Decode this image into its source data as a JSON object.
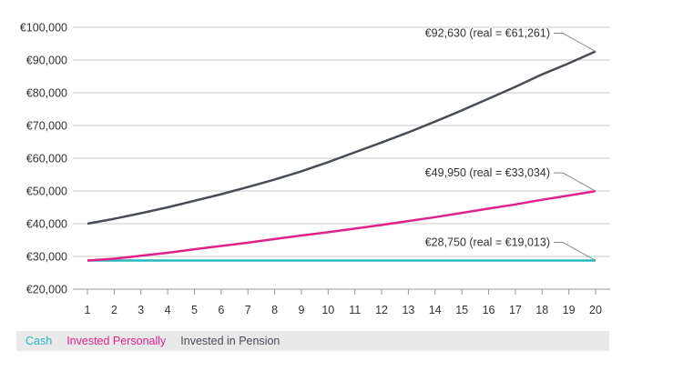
{
  "colors": {
    "cash": "#27b9bd",
    "invested_personally": "#e0218a",
    "invested_pension": "#474c55",
    "grid": "#c9c9c9",
    "axis": "#999999",
    "legend_bg": "#e9e9ea"
  },
  "chart_data": {
    "type": "line",
    "x": [
      1,
      2,
      3,
      4,
      5,
      6,
      7,
      8,
      9,
      10,
      11,
      12,
      13,
      14,
      15,
      16,
      17,
      18,
      19,
      20
    ],
    "xlim": [
      1,
      20
    ],
    "ylim": [
      20000,
      100000
    ],
    "y_ticks": [
      "€20,000",
      "€30,000",
      "€40,000",
      "€50,000",
      "€60,000",
      "€70,000",
      "€80,000",
      "€90,000",
      "€100,000"
    ],
    "x_ticks": [
      "1",
      "2",
      "3",
      "4",
      "5",
      "6",
      "7",
      "8",
      "9",
      "10",
      "11",
      "12",
      "13",
      "14",
      "15",
      "16",
      "17",
      "18",
      "19",
      "20"
    ],
    "grid": "horizontal",
    "legend_position": "bottom",
    "series": [
      {
        "name": "Cash",
        "color_key": "cash",
        "values": [
          28750,
          28750,
          28750,
          28750,
          28750,
          28750,
          28750,
          28750,
          28750,
          28750,
          28750,
          28750,
          28750,
          28750,
          28750,
          28750,
          28750,
          28750,
          28750,
          28750
        ]
      },
      {
        "name": "Invested Personally",
        "color_key": "invested_personally",
        "values": [
          28750,
          29300,
          30200,
          31100,
          32200,
          33200,
          34200,
          35300,
          36400,
          37400,
          38500,
          39600,
          40800,
          42000,
          43300,
          44600,
          45900,
          47300,
          48600,
          49950
        ]
      },
      {
        "name": "Invested in Pension",
        "color_key": "invested_pension",
        "values": [
          40000,
          41500,
          43200,
          45000,
          47000,
          49000,
          51200,
          53500,
          56000,
          58800,
          61800,
          64800,
          67900,
          71200,
          74600,
          78200,
          81800,
          85600,
          89000,
          92630
        ]
      }
    ],
    "annotations": [
      {
        "text": "€92,630 (real = €61,261)",
        "series": 2
      },
      {
        "text": "€49,950 (real = €33,034)",
        "series": 1
      },
      {
        "text": "€28,750 (real = €19,013)",
        "series": 0
      }
    ]
  }
}
